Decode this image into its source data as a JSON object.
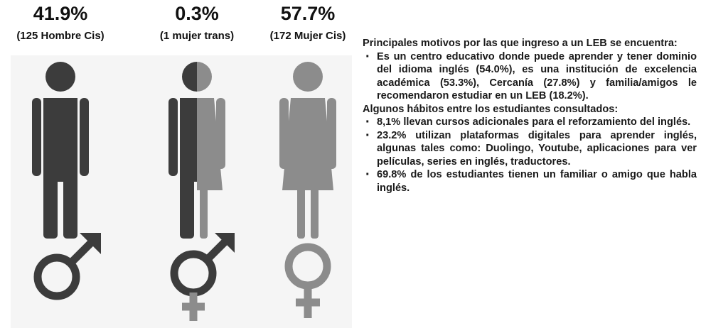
{
  "groups": [
    {
      "percent": "41.9%",
      "label": "(125  Hombre Cis)"
    },
    {
      "percent": "0.3%",
      "label": "(1 mujer trans)"
    },
    {
      "percent": "57.7%",
      "label": "(172 Mujer Cis)"
    }
  ],
  "text": {
    "heading1": "Principales motivos por las que ingreso a un LEB se encuentra:",
    "bullets1": [
      "Es un centro educativo donde puede aprender y tener dominio del idioma inglés (54.0%), es una institución de excelencia académica (53.3%), Cercanía (27.8%) y familia/amigos le recomendaron estudiar en un LEB (18.2%)."
    ],
    "heading2": "Algunos hábitos entre los estudiantes consultados:",
    "bullets2": [
      "8,1% llevan cursos adicionales para el reforzamiento del inglés.",
      "23.2% utilizan plataformas digitales para aprender inglés, algunas tales como: Duolingo, Youtube, aplicaciones para ver películas, series en inglés, traductores.",
      "69.8% de los estudiantes tienen un familiar o amigo que habla inglés."
    ]
  }
}
